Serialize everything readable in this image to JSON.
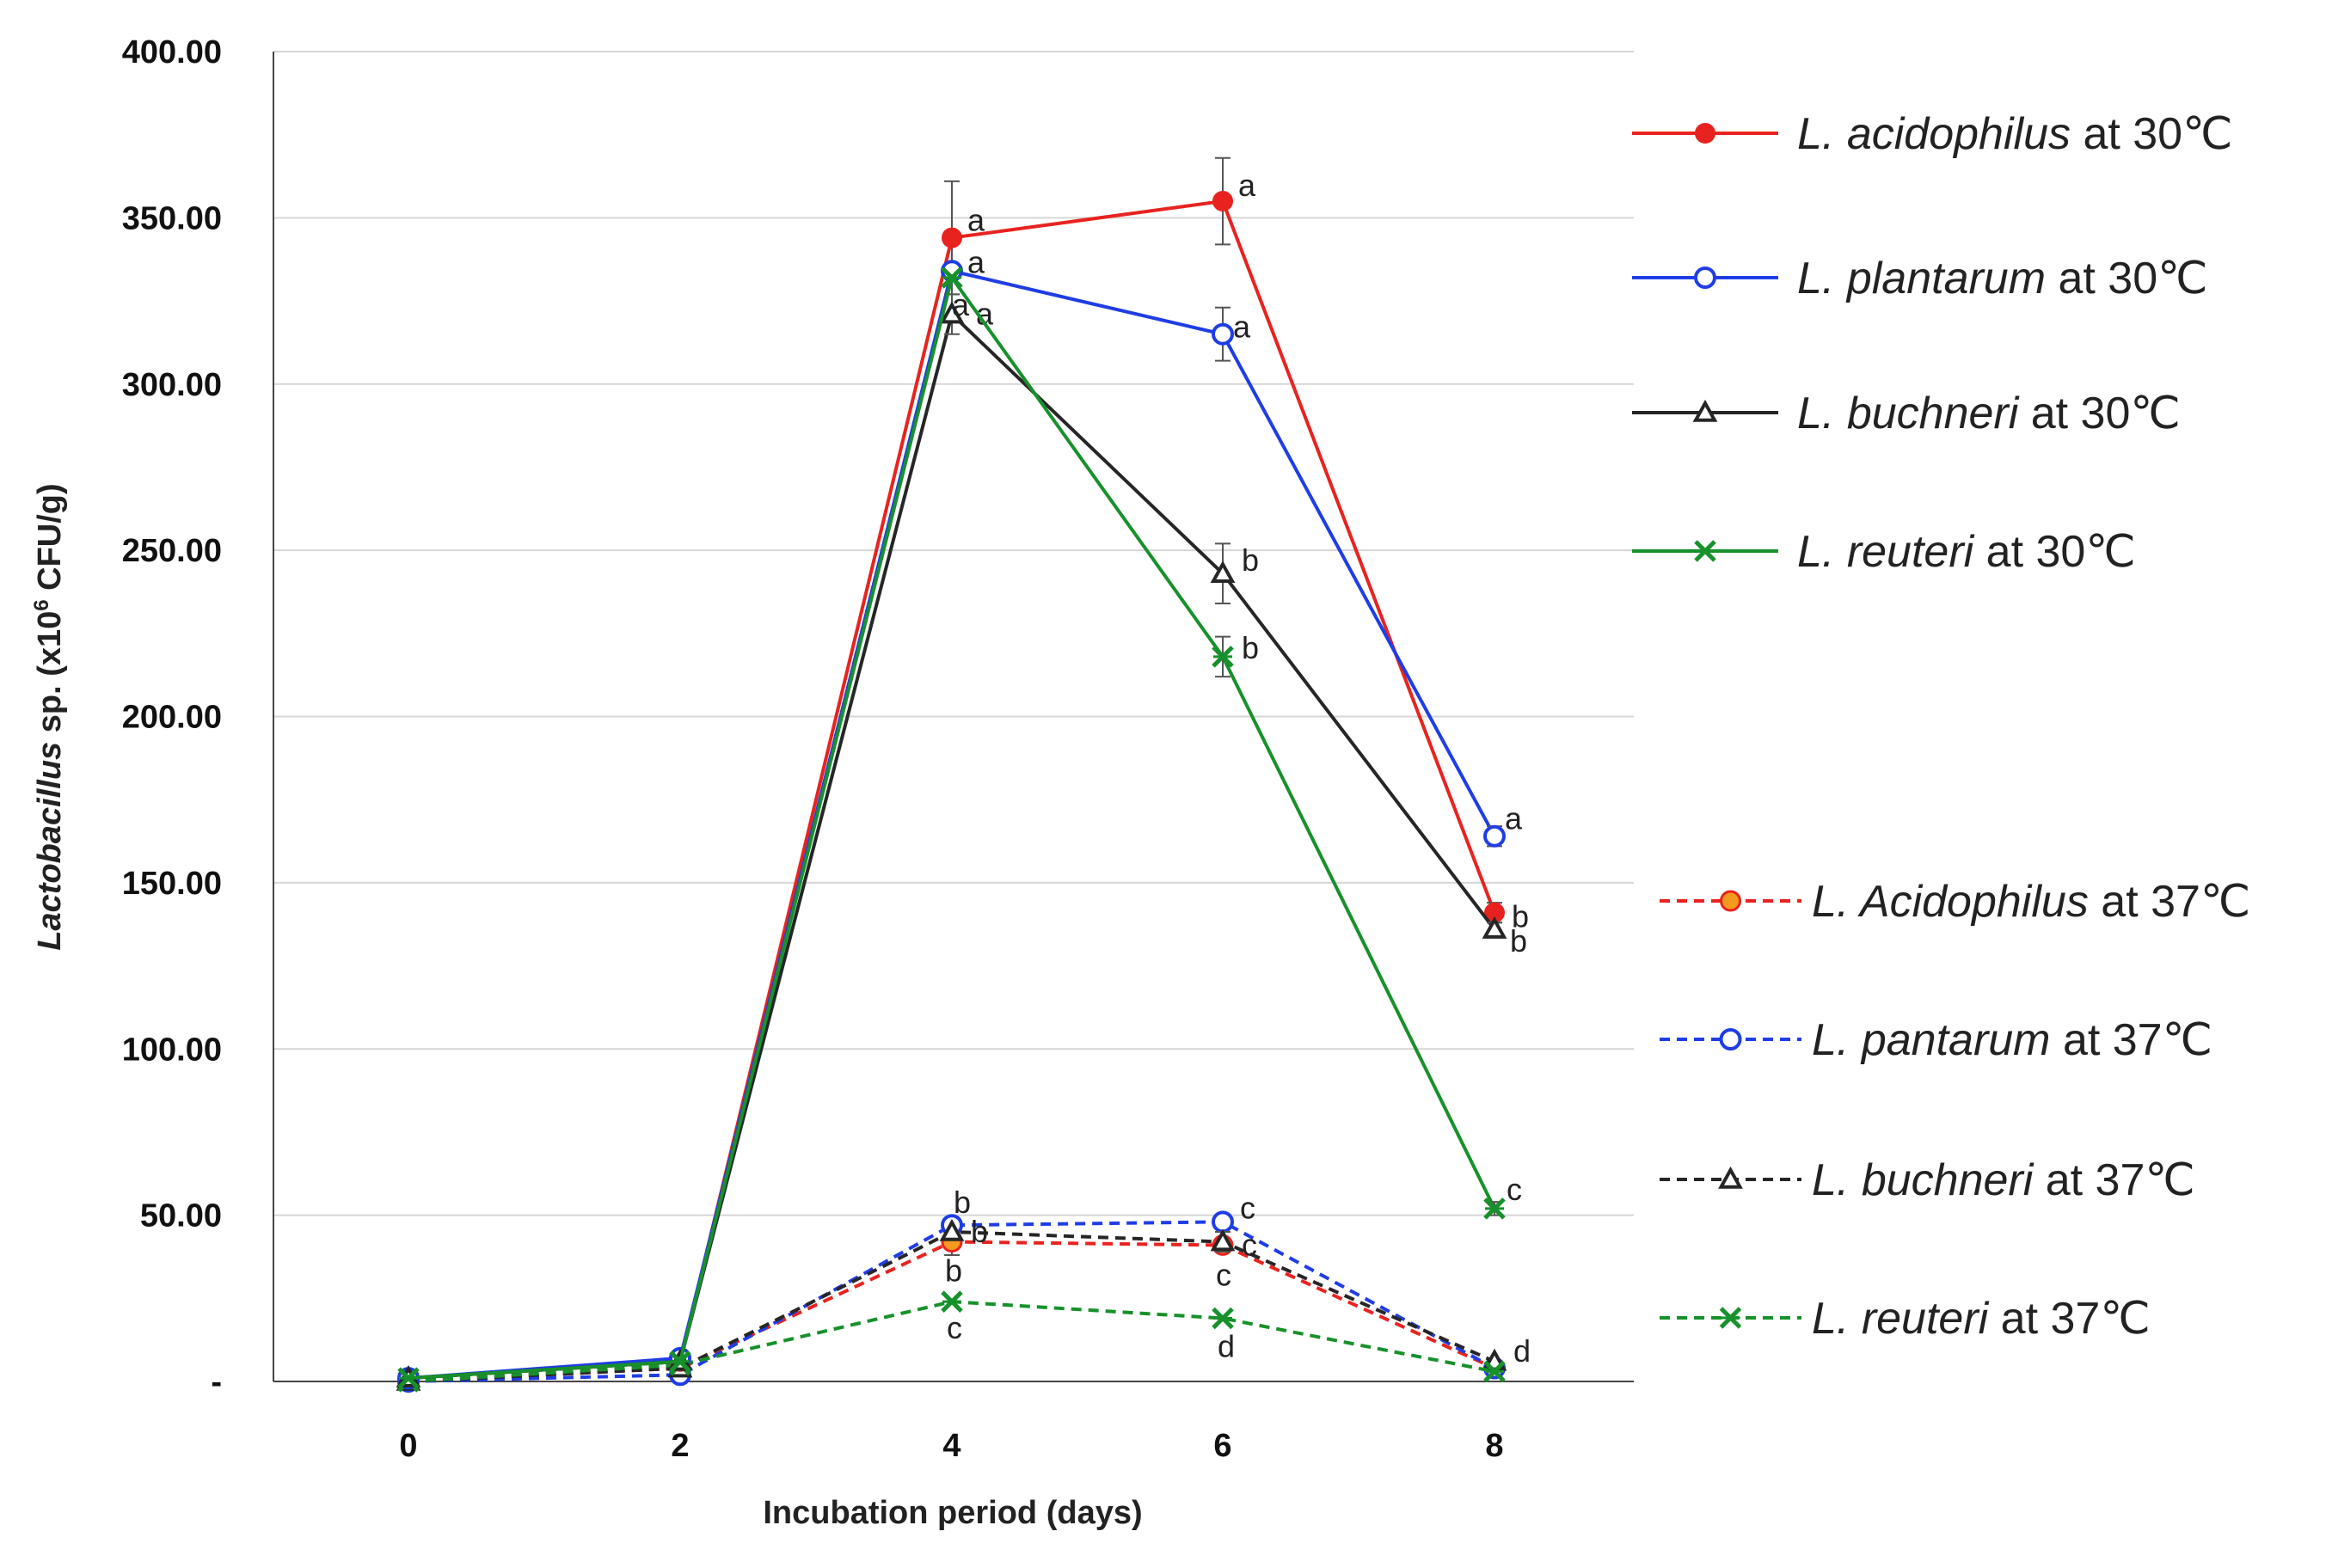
{
  "chart_data": {
    "type": "line",
    "title": "",
    "xlabel": "Incubation period (days)",
    "ylabel": {
      "italic": "Lactobacillus",
      "prefix": " sp. (x10",
      "sup": "6",
      "suffix": " CFU/g)"
    },
    "x": [
      0,
      2,
      4,
      6,
      8
    ],
    "x_tick_labels": [
      "0",
      "2",
      "4",
      "6",
      "8"
    ],
    "ylim": [
      0,
      400
    ],
    "y_ticks": [
      0,
      50,
      100,
      150,
      200,
      250,
      300,
      350,
      400
    ],
    "y_tick_labels": [
      "-",
      "50.00",
      "100.00",
      "150.00",
      "200.00",
      "250.00",
      "300.00",
      "350.00",
      "400.00"
    ],
    "grid": "horizontal",
    "legend_position": "right",
    "series": [
      {
        "name": "L. acidophilus at  30℃",
        "species": "L. acidophilus",
        "suffix": " at  30℃",
        "color": "#e8231f",
        "dash": false,
        "marker": "filled-circle",
        "values": [
          1,
          6,
          344,
          355,
          141
        ],
        "errors": [
          0,
          0,
          17,
          13,
          3
        ],
        "letters": [
          "",
          "",
          "a",
          "a",
          "b"
        ]
      },
      {
        "name": "L. plantarum at 30℃",
        "species": "L. plantarum",
        "suffix": " at 30℃",
        "color": "#1f3de6",
        "dash": false,
        "marker": "open-circle",
        "values": [
          1,
          7,
          334,
          315,
          164
        ],
        "errors": [
          0,
          0,
          0,
          8,
          3
        ],
        "letters": [
          "",
          "",
          "a",
          "a",
          "a"
        ]
      },
      {
        "name": "L. buchneri at 30℃",
        "species": "L. buchneri",
        "suffix": " at 30℃",
        "color": "#262626",
        "dash": false,
        "marker": "open-triangle",
        "values": [
          1,
          6,
          321,
          243,
          136
        ],
        "errors": [
          0,
          0,
          6,
          9,
          2
        ],
        "letters": [
          "",
          "",
          "a",
          "b",
          "b"
        ]
      },
      {
        "name": "L. reuteri at 30℃",
        "species": "L. reuteri",
        "suffix": " at 30℃",
        "color": "#17912b",
        "dash": false,
        "marker": "x",
        "values": [
          1,
          6,
          332,
          218,
          52
        ],
        "errors": [
          0,
          0,
          0,
          6,
          2
        ],
        "letters": [
          "",
          "",
          "a",
          "b",
          "c"
        ]
      },
      {
        "name": "L. Acidophilus at 37℃",
        "species": "L. Acidophilus",
        "suffix": " at 37℃",
        "color": "#e8231f",
        "dash": true,
        "marker": "filled-circle-orange",
        "values": [
          0,
          4,
          42,
          41,
          4
        ],
        "errors": [
          0,
          0,
          4,
          2,
          0
        ],
        "letters": [
          "",
          "",
          "b",
          "c",
          ""
        ]
      },
      {
        "name": "L. pantarum at 37℃",
        "species": "L. pantarum",
        "suffix": " at 37℃",
        "color": "#1f3de6",
        "dash": true,
        "marker": "open-circle",
        "values": [
          0,
          2,
          47,
          48,
          4
        ],
        "errors": [
          0,
          0,
          0,
          0,
          0
        ],
        "letters": [
          "",
          "",
          "b",
          "c",
          ""
        ]
      },
      {
        "name": "L. buchneri at 37℃",
        "species": "L. buchneri",
        "suffix": " at 37℃",
        "color": "#262626",
        "dash": true,
        "marker": "open-triangle",
        "values": [
          0,
          4,
          45,
          42,
          6
        ],
        "errors": [
          0,
          0,
          0,
          3,
          0
        ],
        "letters": [
          "",
          "",
          "b",
          "c",
          "d"
        ]
      },
      {
        "name": "L. reuteri at 37℃",
        "species": "L. reuteri",
        "suffix": " at 37℃",
        "color": "#17912b",
        "dash": true,
        "marker": "x",
        "values": [
          0,
          5,
          24,
          19,
          3
        ],
        "errors": [
          0,
          0,
          0,
          0,
          0
        ],
        "letters": [
          "",
          "",
          "c",
          "d",
          ""
        ]
      }
    ]
  }
}
